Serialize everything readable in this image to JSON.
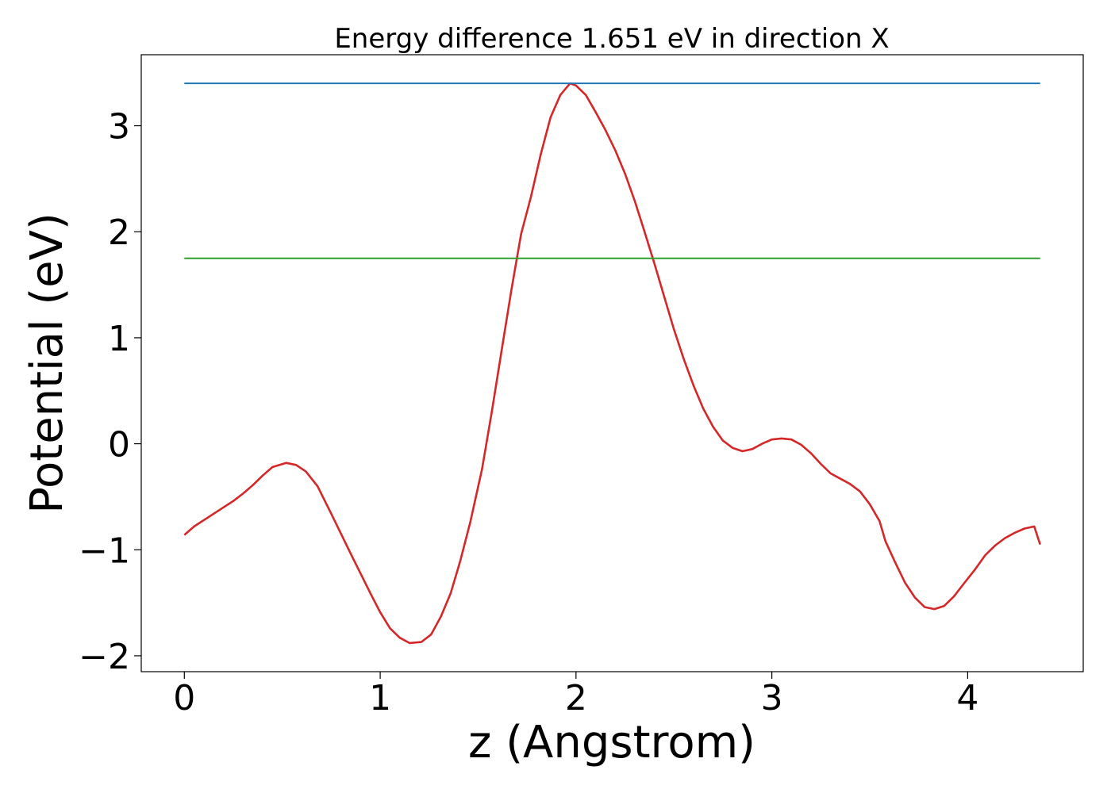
{
  "chart_data": {
    "type": "line",
    "title": "Energy difference 1.651 eV in direction X",
    "xlabel": "z (Angstrom)",
    "ylabel": "Potential (eV)",
    "xlim": [
      -0.22,
      4.59
    ],
    "ylim": [
      -2.15,
      3.67
    ],
    "xticks": [
      0,
      1,
      2,
      3,
      4
    ],
    "xtick_labels": [
      "0",
      "1",
      "2",
      "3",
      "4"
    ],
    "yticks": [
      -2,
      -1,
      0,
      1,
      2,
      3
    ],
    "ytick_labels": [
      "−2",
      "−1",
      "0",
      "1",
      "2",
      "3"
    ],
    "grid": false,
    "series": [
      {
        "color": "#d62728",
        "x": [
          0.0,
          0.05,
          0.1,
          0.15,
          0.2,
          0.25,
          0.3,
          0.35,
          0.4,
          0.45,
          0.52,
          0.57,
          0.62,
          0.68,
          0.75,
          0.85,
          0.95,
          1.0,
          1.05,
          1.1,
          1.15,
          1.21,
          1.26,
          1.31,
          1.36,
          1.41,
          1.46,
          1.52,
          1.57,
          1.62,
          1.67,
          1.72,
          1.77,
          1.82,
          1.87,
          1.92,
          1.97,
          2.0,
          2.05,
          2.1,
          2.15,
          2.2,
          2.25,
          2.3,
          2.35,
          2.4,
          2.45,
          2.5,
          2.55,
          2.6,
          2.65,
          2.7,
          2.75,
          2.8,
          2.85,
          2.9,
          2.95,
          3.0,
          3.05,
          3.1,
          3.15,
          3.2,
          3.25,
          3.3,
          3.35,
          3.4,
          3.45,
          3.5,
          3.55,
          3.58,
          3.63,
          3.68,
          3.73,
          3.78,
          3.83,
          3.88,
          3.93,
          3.98,
          4.04,
          4.09,
          4.14,
          4.19,
          4.24,
          4.29,
          4.34,
          4.37
        ],
        "y": [
          -0.86,
          -0.78,
          -0.72,
          -0.66,
          -0.6,
          -0.54,
          -0.47,
          -0.39,
          -0.3,
          -0.22,
          -0.18,
          -0.2,
          -0.26,
          -0.4,
          -0.66,
          -1.04,
          -1.41,
          -1.59,
          -1.74,
          -1.83,
          -1.88,
          -1.87,
          -1.8,
          -1.63,
          -1.41,
          -1.1,
          -0.74,
          -0.24,
          0.3,
          0.88,
          1.45,
          1.98,
          2.33,
          2.73,
          3.08,
          3.29,
          3.4,
          3.38,
          3.29,
          3.13,
          2.96,
          2.77,
          2.55,
          2.29,
          2.0,
          1.7,
          1.39,
          1.08,
          0.8,
          0.55,
          0.33,
          0.16,
          0.03,
          -0.04,
          -0.07,
          -0.05,
          0.0,
          0.04,
          0.05,
          0.04,
          -0.01,
          -0.09,
          -0.19,
          -0.28,
          -0.33,
          -0.38,
          -0.45,
          -0.57,
          -0.73,
          -0.92,
          -1.12,
          -1.31,
          -1.45,
          -1.54,
          -1.56,
          -1.53,
          -1.44,
          -1.32,
          -1.18,
          -1.05,
          -0.96,
          -0.89,
          -0.84,
          -0.8,
          -0.78,
          -0.95
        ]
      },
      {
        "color": "#1f77b4",
        "x": [
          0.0,
          4.37
        ],
        "y": [
          3.4,
          3.4
        ]
      },
      {
        "color": "#2ca02c",
        "x": [
          0.0,
          4.37
        ],
        "y": [
          1.75,
          1.75
        ]
      }
    ]
  }
}
